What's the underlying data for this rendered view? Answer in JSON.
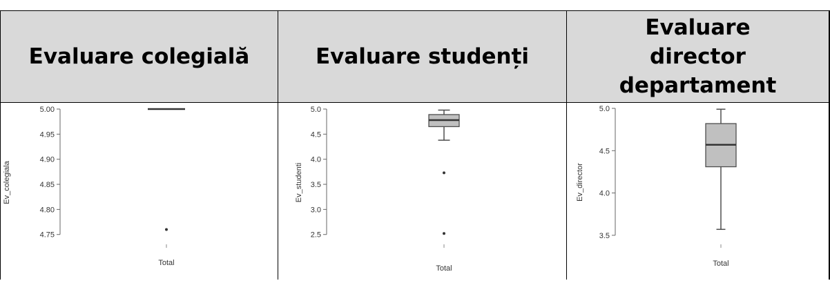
{
  "headers": [
    "Evaluare colegială",
    "Evaluare studenți",
    "Evaluare director departament"
  ],
  "chart_data": [
    {
      "type": "boxplot",
      "xlabel": "Total",
      "ylabel": "Ev_colegiala",
      "ylim": [
        4.74,
        5.0
      ],
      "yticks": [
        "5.00",
        "4.95",
        "4.90",
        "4.85",
        "4.80",
        "4.75"
      ],
      "box": {
        "q1": 5.0,
        "median": 5.0,
        "q3": 5.0,
        "whisker_low": 5.0,
        "whisker_high": 5.0
      },
      "outliers": [
        4.76
      ]
    },
    {
      "type": "boxplot",
      "xlabel": "Total",
      "ylabel": "Ev_studenti",
      "ylim": [
        2.4,
        5.0
      ],
      "yticks": [
        "5.0",
        "4.5",
        "4.0",
        "3.5",
        "3.0",
        "2.5"
      ],
      "box": {
        "q1": 4.65,
        "median": 4.78,
        "q3": 4.89,
        "whisker_low": 4.38,
        "whisker_high": 4.98
      },
      "outliers": [
        3.73,
        2.52
      ]
    },
    {
      "type": "boxplot",
      "xlabel": "Total",
      "ylabel": "Ev_director",
      "ylim": [
        3.45,
        5.0
      ],
      "yticks": [
        "5.0",
        "4.5",
        "4.0",
        "3.5"
      ],
      "box": {
        "q1": 4.31,
        "median": 4.57,
        "q3": 4.82,
        "whisker_low": 3.57,
        "whisker_high": 4.99
      },
      "outliers": []
    }
  ]
}
